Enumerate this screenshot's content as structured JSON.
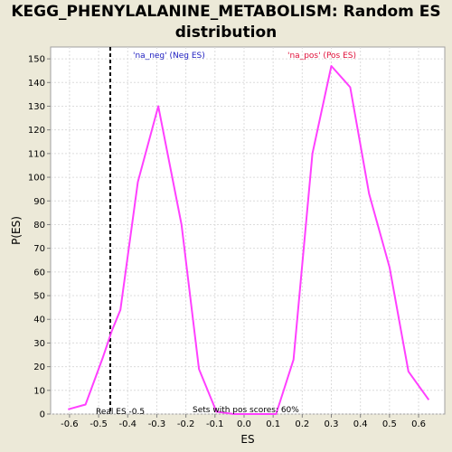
{
  "chart_data": {
    "type": "line",
    "title_line1": "KEGG_PHENYLALANINE_METABOLISM: Random ES",
    "title_line2": "distribution",
    "xlabel": "ES",
    "ylabel": "P(ES)",
    "xlim": [
      -0.665,
      0.69
    ],
    "ylim": [
      0,
      155
    ],
    "x_ticks": [
      -0.6,
      -0.5,
      -0.4,
      -0.3,
      -0.2,
      -0.1,
      0.0,
      0.1,
      0.2,
      0.3,
      0.4,
      0.5,
      0.6
    ],
    "x_tick_labels": [
      "-0.6",
      "-0.5",
      "-0.4",
      "-0.3",
      "-0.2",
      "-0.1",
      "0.0",
      "0.1",
      "0.2",
      "0.3",
      "0.4",
      "0.5",
      "0.6"
    ],
    "y_ticks": [
      0,
      10,
      20,
      30,
      40,
      50,
      60,
      70,
      80,
      90,
      100,
      110,
      120,
      130,
      140,
      150
    ],
    "grid": true,
    "series": [
      {
        "color": "#ff40ff",
        "x": [
          -0.605,
          -0.545,
          -0.485,
          -0.455,
          -0.425,
          -0.365,
          -0.295,
          -0.215,
          -0.155,
          -0.095,
          -0.035,
          0.11,
          0.17,
          0.235,
          0.3,
          0.365,
          0.43,
          0.5,
          0.565,
          0.635
        ],
        "y": [
          2,
          4,
          24,
          35,
          44,
          98,
          130,
          80,
          19,
          1,
          0,
          0,
          23,
          110,
          147,
          138,
          93,
          62,
          18,
          6
        ]
      }
    ],
    "real_es": -0.46,
    "annotations": {
      "neg_label": "'na_neg' (Neg ES)",
      "pos_label": "'na_pos' (Pos ES)",
      "real_es_label": "Real ES -0.5",
      "sets_label": "Sets with pos scores: 60%"
    },
    "colors": {
      "neg": "#2020c0",
      "pos": "#e0103a",
      "background": "#ece9d8",
      "plot_bg": "#ffffff",
      "grid": "#dcdcdc"
    }
  }
}
